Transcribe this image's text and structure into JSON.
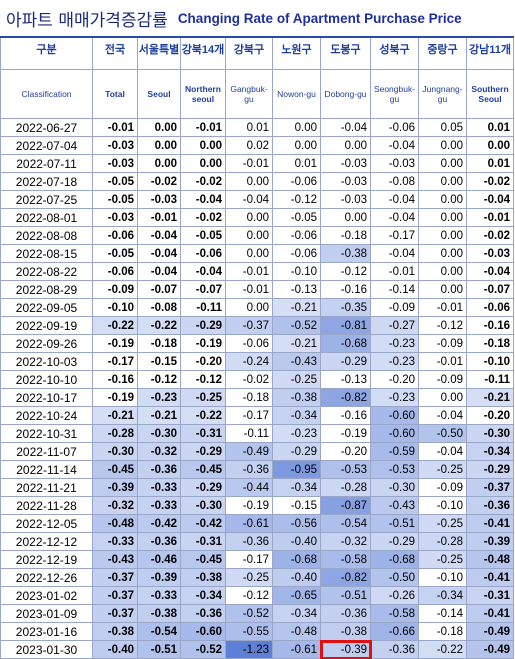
{
  "header": {
    "title_ko": "아파트 매매가격증감률",
    "title_en": "Changing Rate of Apartment Purchase Price"
  },
  "table": {
    "columns_ko": [
      "구분",
      "전국",
      "서울특별",
      "강북14개",
      "강북구",
      "노원구",
      "도봉구",
      "성북구",
      "중랑구",
      "강남11개"
    ],
    "columns_en": [
      "Classification",
      "Total",
      "Seoul",
      "Northern seoul",
      "Gangbuk-gu",
      "Nowon-gu",
      "Dobong-gu",
      "Seongbuk-gu",
      "Jungnang-gu",
      "Southern Seoul"
    ],
    "rows": [
      [
        "2022-06-27",
        "-0.01",
        "0.00",
        "-0.01",
        "0.01",
        "0.00",
        "-0.04",
        "-0.06",
        "0.05",
        "0.01"
      ],
      [
        "2022-07-04",
        "-0.03",
        "0.00",
        "0.00",
        "0.02",
        "0.00",
        "0.00",
        "-0.04",
        "0.00",
        "0.00"
      ],
      [
        "2022-07-11",
        "-0.03",
        "0.00",
        "0.00",
        "-0.01",
        "0.01",
        "-0.03",
        "-0.03",
        "0.00",
        "0.01"
      ],
      [
        "2022-07-18",
        "-0.05",
        "-0.02",
        "-0.02",
        "0.00",
        "-0.06",
        "-0.03",
        "-0.08",
        "0.00",
        "-0.02"
      ],
      [
        "2022-07-25",
        "-0.05",
        "-0.03",
        "-0.04",
        "-0.04",
        "-0.12",
        "-0.03",
        "-0.04",
        "0.00",
        "-0.04"
      ],
      [
        "2022-08-01",
        "-0.03",
        "-0.01",
        "-0.02",
        "0.00",
        "-0.05",
        "0.00",
        "-0.04",
        "0.00",
        "-0.01"
      ],
      [
        "2022-08-08",
        "-0.06",
        "-0.04",
        "-0.05",
        "0.00",
        "-0.06",
        "-0.18",
        "-0.17",
        "0.00",
        "-0.02"
      ],
      [
        "2022-08-15",
        "-0.05",
        "-0.04",
        "-0.06",
        "0.00",
        "-0.06",
        "-0.38",
        "-0.04",
        "0.00",
        "-0.03"
      ],
      [
        "2022-08-22",
        "-0.06",
        "-0.04",
        "-0.04",
        "-0.01",
        "-0.10",
        "-0.12",
        "-0.01",
        "0.00",
        "-0.04"
      ],
      [
        "2022-08-29",
        "-0.09",
        "-0.07",
        "-0.07",
        "-0.01",
        "-0.13",
        "-0.16",
        "-0.14",
        "0.00",
        "-0.07"
      ],
      [
        "2022-09-05",
        "-0.10",
        "-0.08",
        "-0.11",
        "0.00",
        "-0.21",
        "-0.35",
        "-0.09",
        "-0.01",
        "-0.06"
      ],
      [
        "2022-09-19",
        "-0.22",
        "-0.22",
        "-0.29",
        "-0.37",
        "-0.52",
        "-0.81",
        "-0.27",
        "-0.12",
        "-0.16"
      ],
      [
        "2022-09-26",
        "-0.19",
        "-0.18",
        "-0.19",
        "-0.06",
        "-0.21",
        "-0.68",
        "-0.23",
        "-0.09",
        "-0.18"
      ],
      [
        "2022-10-03",
        "-0.17",
        "-0.15",
        "-0.20",
        "-0.24",
        "-0.43",
        "-0.29",
        "-0.23",
        "-0.01",
        "-0.10"
      ],
      [
        "2022-10-10",
        "-0.16",
        "-0.12",
        "-0.12",
        "-0.02",
        "-0.25",
        "-0.13",
        "-0.20",
        "-0.09",
        "-0.11"
      ],
      [
        "2022-10-17",
        "-0.19",
        "-0.23",
        "-0.25",
        "-0.18",
        "-0.38",
        "-0.82",
        "-0.23",
        "0.00",
        "-0.21"
      ],
      [
        "2022-10-24",
        "-0.21",
        "-0.21",
        "-0.22",
        "-0.17",
        "-0.34",
        "-0.16",
        "-0.60",
        "-0.04",
        "-0.20"
      ],
      [
        "2022-10-31",
        "-0.28",
        "-0.30",
        "-0.31",
        "-0.11",
        "-0.23",
        "-0.19",
        "-0.60",
        "-0.50",
        "-0.30"
      ],
      [
        "2022-11-07",
        "-0.30",
        "-0.32",
        "-0.29",
        "-0.49",
        "-0.29",
        "-0.20",
        "-0.59",
        "-0.04",
        "-0.34"
      ],
      [
        "2022-11-14",
        "-0.45",
        "-0.36",
        "-0.45",
        "-0.36",
        "-0.95",
        "-0.53",
        "-0.53",
        "-0.25",
        "-0.29"
      ],
      [
        "2022-11-21",
        "-0.39",
        "-0.33",
        "-0.29",
        "-0.44",
        "-0.34",
        "-0.28",
        "-0.30",
        "-0.09",
        "-0.37"
      ],
      [
        "2022-11-28",
        "-0.32",
        "-0.33",
        "-0.30",
        "-0.19",
        "-0.15",
        "-0.87",
        "-0.43",
        "-0.10",
        "-0.36"
      ],
      [
        "2022-12-05",
        "-0.48",
        "-0.42",
        "-0.42",
        "-0.61",
        "-0.56",
        "-0.54",
        "-0.51",
        "-0.25",
        "-0.41"
      ],
      [
        "2022-12-12",
        "-0.33",
        "-0.36",
        "-0.31",
        "-0.36",
        "-0.40",
        "-0.32",
        "-0.29",
        "-0.28",
        "-0.39"
      ],
      [
        "2022-12-19",
        "-0.43",
        "-0.46",
        "-0.45",
        "-0.17",
        "-0.68",
        "-0.58",
        "-0.68",
        "-0.25",
        "-0.48"
      ],
      [
        "2022-12-26",
        "-0.37",
        "-0.39",
        "-0.38",
        "-0.25",
        "-0.40",
        "-0.82",
        "-0.50",
        "-0.10",
        "-0.41"
      ],
      [
        "2023-01-02",
        "-0.37",
        "-0.33",
        "-0.34",
        "-0.12",
        "-0.65",
        "-0.51",
        "-0.26",
        "-0.34",
        "-0.31"
      ],
      [
        "2023-01-09",
        "-0.37",
        "-0.38",
        "-0.36",
        "-0.52",
        "-0.34",
        "-0.36",
        "-0.58",
        "-0.14",
        "-0.41"
      ],
      [
        "2023-01-16",
        "-0.38",
        "-0.54",
        "-0.60",
        "-0.55",
        "-0.48",
        "-0.38",
        "-0.66",
        "-0.18",
        "-0.49"
      ],
      [
        "2023-01-30",
        "-0.40",
        "-0.51",
        "-0.52",
        "-1.23",
        "-0.61",
        "-0.39",
        "-0.36",
        "-0.22",
        "-0.49"
      ]
    ]
  }
}
